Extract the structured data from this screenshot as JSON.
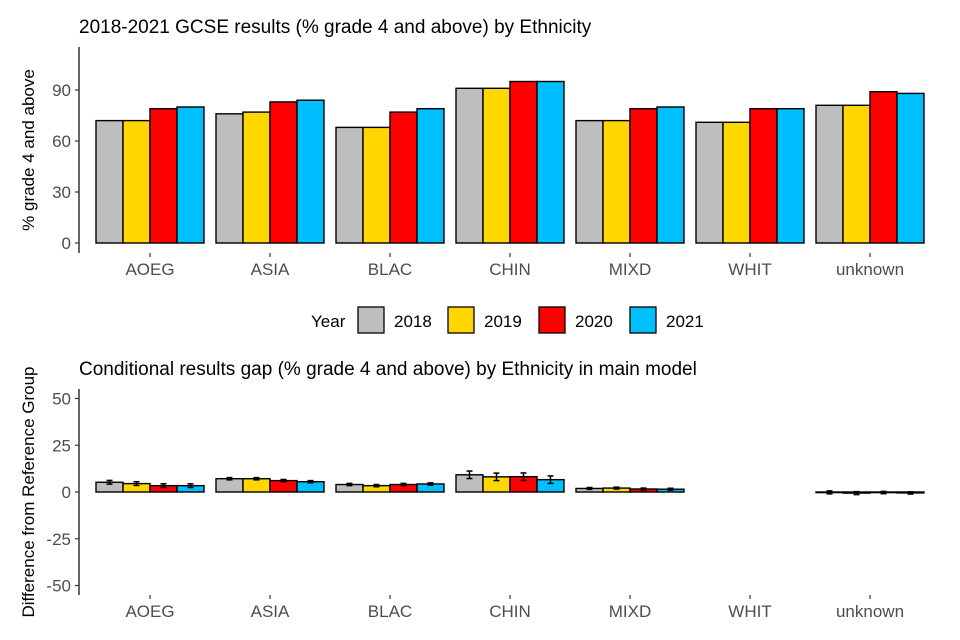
{
  "legend": {
    "title": "Year",
    "entries": [
      {
        "label": "2018",
        "color": "#BEBEBE"
      },
      {
        "label": "2019",
        "color": "#FFD700"
      },
      {
        "label": "2020",
        "color": "#FF0000"
      },
      {
        "label": "2021",
        "color": "#00BFFF"
      }
    ]
  },
  "chart_data": [
    {
      "type": "bar",
      "title": "2018-2021 GCSE results (% grade 4 and above) by Ethnicity",
      "xlabel": "",
      "ylabel": "% grade 4 and above",
      "ylim": [
        0,
        113
      ],
      "yticks": [
        0,
        30,
        60,
        90
      ],
      "grid": false,
      "legend_position": "bottom",
      "categories": [
        "AOEG",
        "ASIA",
        "BLAC",
        "CHIN",
        "MIXD",
        "WHIT",
        "unknown"
      ],
      "series": [
        {
          "name": "2018",
          "values": [
            72,
            76,
            68,
            91,
            72,
            71,
            81
          ]
        },
        {
          "name": "2019",
          "values": [
            72,
            77,
            68,
            91,
            72,
            71,
            81
          ]
        },
        {
          "name": "2020",
          "values": [
            79,
            83,
            77,
            95,
            79,
            79,
            89
          ]
        },
        {
          "name": "2021",
          "values": [
            80,
            84,
            79,
            95,
            80,
            79,
            88
          ]
        }
      ]
    },
    {
      "type": "bar",
      "title": "Conditional results gap (% grade 4 and above) by Ethnicity in main model",
      "xlabel": "",
      "ylabel": "Difference from Reference Group",
      "ylim": [
        -55,
        55
      ],
      "yticks": [
        -50,
        -25,
        0,
        25,
        50
      ],
      "grid": false,
      "error_bars": true,
      "categories": [
        "AOEG",
        "ASIA",
        "BLAC",
        "CHIN",
        "MIXD",
        "WHIT",
        "unknown"
      ],
      "series": [
        {
          "name": "2018",
          "values": [
            5.2,
            7.1,
            4.0,
            9.2,
            1.9,
            null,
            -0.2
          ],
          "errors": [
            1.0,
            0.6,
            0.6,
            2.0,
            0.5,
            null,
            0.8
          ]
        },
        {
          "name": "2019",
          "values": [
            4.5,
            7.1,
            3.4,
            8.1,
            2.1,
            null,
            -0.6
          ],
          "errors": [
            1.0,
            0.6,
            0.6,
            2.0,
            0.5,
            null,
            0.8
          ]
        },
        {
          "name": "2020",
          "values": [
            3.4,
            6.1,
            4.0,
            8.2,
            1.6,
            null,
            -0.3
          ],
          "errors": [
            1.0,
            0.6,
            0.6,
            2.0,
            0.5,
            null,
            0.6
          ]
        },
        {
          "name": "2021",
          "values": [
            3.4,
            5.5,
            4.3,
            6.6,
            1.5,
            null,
            -0.5
          ],
          "errors": [
            1.0,
            0.6,
            0.6,
            2.0,
            0.5,
            null,
            0.6
          ]
        }
      ]
    }
  ]
}
